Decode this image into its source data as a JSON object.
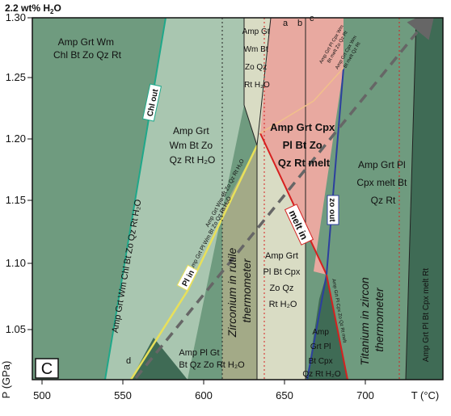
{
  "header": {
    "water_content": "2.2 wt% H",
    "water_sub": "2",
    "water_tail": "O"
  },
  "panel_label": "C",
  "axes": {
    "x_label": "T (°C)",
    "y_label": "P (GPa)",
    "x_ticks": [
      "500",
      "550",
      "600",
      "650",
      "700"
    ],
    "y_ticks": [
      "1.30",
      "1.25",
      "1.20",
      "1.15",
      "1.10",
      "1.05"
    ],
    "x_range": [
      500,
      735
    ],
    "y_range": [
      1.0,
      1.3
    ]
  },
  "fields": {
    "top_left": [
      "Amp Grt Wm",
      "Chl Bt Zo Qz Rt"
    ],
    "left_diag": "Amp Grt Wm Chl Bt Zo Qz Rt H₂O",
    "mid_upper": [
      "Amp Grt",
      "Wm Bt Zo",
      "Qz Rt H₂O"
    ],
    "col_a": [
      "Amp Gt",
      "Wm Bt",
      "Zo Qz",
      "Rt H₂O"
    ],
    "center_melt": [
      "Amp Grt Cpx",
      "Pl Bt Zo",
      "Qz Rt melt"
    ],
    "right": [
      "Amp Grt Pl",
      "Cpx melt Bt",
      "Qz Rt"
    ],
    "mid_lower": [
      "Amp Grt",
      "Pl Bt Cpx",
      "Zo Qz",
      "Rt H₂O"
    ],
    "bottom_left": [
      "Amp Pl Gt",
      "Bt Qz Zo Rt H₂O"
    ],
    "bottom_right_small": [
      "Amp",
      "Grt Pl",
      "Bt Cpx",
      "Qz Rt H₂O"
    ],
    "far_right": "Amp Grt Pl Bt Cpx melt Rt",
    "tiny_top_right": [
      "Amp Grt Pl Cpx Wm",
      "Bt melt Zo Qz Rt"
    ],
    "tiny_top_right2": [
      "Amp Grt Cpx Wm",
      "Bt melt Qz Rt"
    ],
    "small_diag_1": "Amp Grt Pl Wm Bt Zo Qz Rt H₂O",
    "small_diag_2": "Amp Grt Wm Bt Zo Qz Rt H₂O",
    "small_diag_3": "Amp Grt Pl Cpx Zo Qz Rt melt"
  },
  "small_letters": [
    "a",
    "b",
    "c",
    "d"
  ],
  "reaction_labels": {
    "chl_out": "Chl out",
    "pl_in": "Pl in",
    "melt_in": "melt in",
    "zo_out": "zo out"
  },
  "thermometers": {
    "zr_in_rutile": [
      "Zirconium in rutile",
      "thermometer"
    ],
    "ti_in_zircon": [
      "Titanium in zircon",
      "thermometer"
    ]
  },
  "colors": {
    "background_green": "#6f9b7f",
    "light_green": "#a9c6b0",
    "pale_beige": "#d9dcc4",
    "melt_pink": "#e8a9a0",
    "dark_green": "#3f6b55",
    "blue_line": "#2c3f9e",
    "red_line": "#d6201f",
    "yellow_line": "#e8e05a",
    "teal_line": "#1fa88a",
    "arrow_gray": "#666666"
  }
}
